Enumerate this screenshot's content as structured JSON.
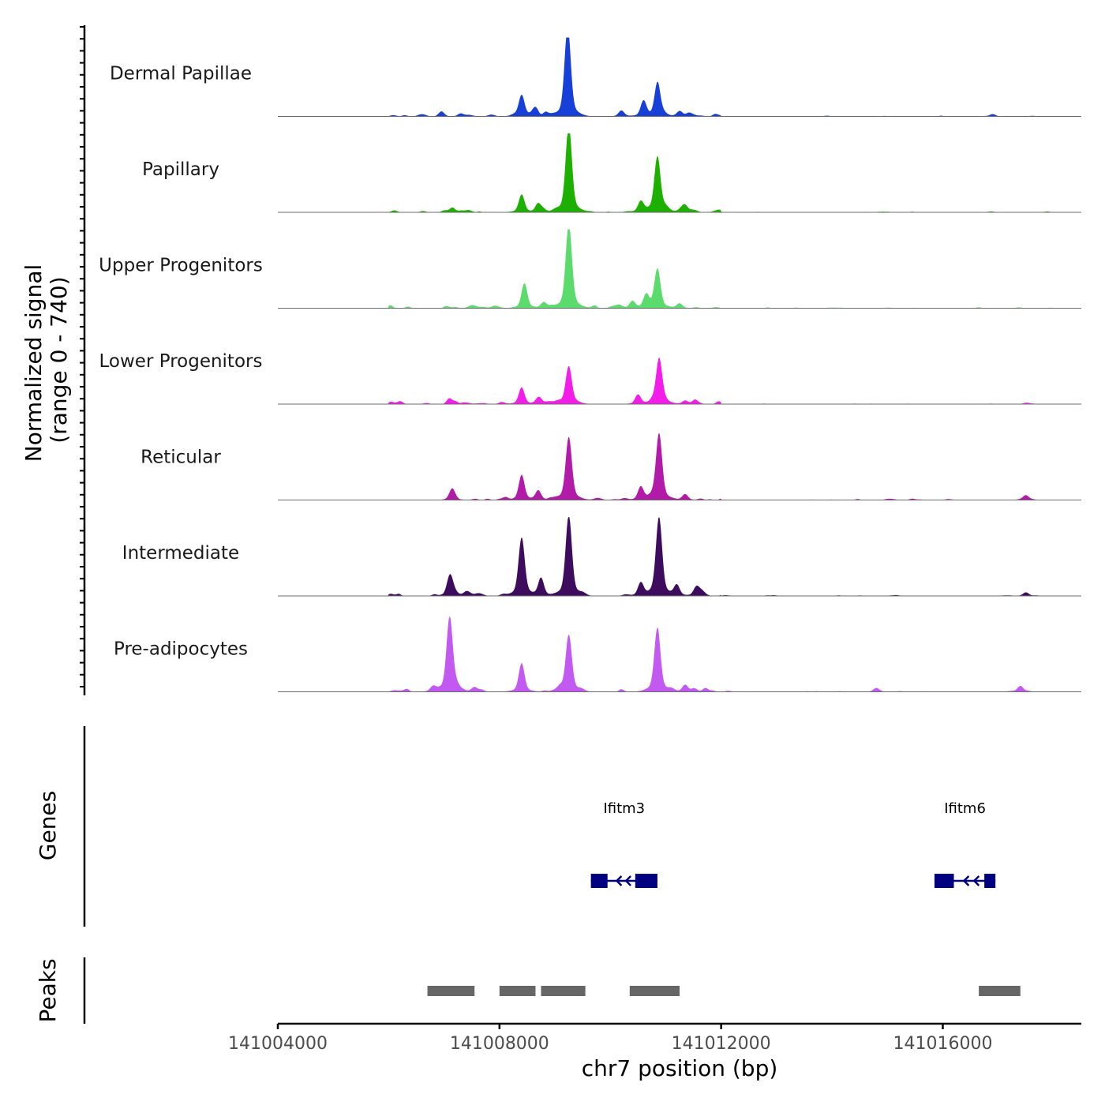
{
  "chart_data": {
    "type": "area",
    "title": "",
    "xlabel": "chr7 position (bp)",
    "ylabel_line1": "Normalized signal",
    "ylabel_line2": "(range 0 - 740)",
    "ylim": [
      0,
      740
    ],
    "x_range": [
      141004000,
      141018500
    ],
    "x_ticks": [
      141004000,
      141008000,
      141012000,
      141016000
    ],
    "x_tick_labels": [
      "141004000",
      "141008000",
      "141012000",
      "141016000"
    ],
    "series": [
      {
        "name": "Dermal Papillae",
        "color": "#1640D8",
        "peaks": [
          {
            "pos": 141007300,
            "height": 25
          },
          {
            "pos": 141008400,
            "height": 180
          },
          {
            "pos": 141008650,
            "height": 70
          },
          {
            "pos": 141009230,
            "height": 740
          },
          {
            "pos": 141010200,
            "height": 50
          },
          {
            "pos": 141010600,
            "height": 130
          },
          {
            "pos": 141010850,
            "height": 280
          },
          {
            "pos": 141011250,
            "height": 40
          },
          {
            "pos": 141016900,
            "height": 20
          }
        ]
      },
      {
        "name": "Papillary",
        "color": "#1DB000",
        "peaks": [
          {
            "pos": 141007150,
            "height": 40
          },
          {
            "pos": 141008400,
            "height": 150
          },
          {
            "pos": 141008700,
            "height": 60
          },
          {
            "pos": 141009250,
            "height": 740
          },
          {
            "pos": 141010550,
            "height": 90
          },
          {
            "pos": 141010850,
            "height": 470
          },
          {
            "pos": 141011350,
            "height": 40
          }
        ]
      },
      {
        "name": "Upper Progenitors",
        "color": "#5ADB6C",
        "peaks": [
          {
            "pos": 141007200,
            "height": 10
          },
          {
            "pos": 141008450,
            "height": 210
          },
          {
            "pos": 141008800,
            "height": 50
          },
          {
            "pos": 141009250,
            "height": 700
          },
          {
            "pos": 141010400,
            "height": 60
          },
          {
            "pos": 141010650,
            "height": 110
          },
          {
            "pos": 141010850,
            "height": 330
          },
          {
            "pos": 141011250,
            "height": 40
          }
        ]
      },
      {
        "name": "Lower Progenitors",
        "color": "#F21DE9",
        "peaks": [
          {
            "pos": 141007200,
            "height": 25
          },
          {
            "pos": 141008400,
            "height": 140
          },
          {
            "pos": 141008700,
            "height": 40
          },
          {
            "pos": 141009250,
            "height": 320
          },
          {
            "pos": 141010500,
            "height": 80
          },
          {
            "pos": 141010880,
            "height": 380
          },
          {
            "pos": 141011350,
            "height": 30
          },
          {
            "pos": 141017500,
            "height": 10
          }
        ]
      },
      {
        "name": "Reticular",
        "color": "#B21AA8",
        "peaks": [
          {
            "pos": 141007150,
            "height": 70
          },
          {
            "pos": 141008400,
            "height": 210
          },
          {
            "pos": 141008700,
            "height": 80
          },
          {
            "pos": 141009250,
            "height": 530
          },
          {
            "pos": 141010550,
            "height": 110
          },
          {
            "pos": 141010880,
            "height": 560
          },
          {
            "pos": 141011350,
            "height": 50
          },
          {
            "pos": 141017500,
            "height": 40
          }
        ]
      },
      {
        "name": "Intermediate",
        "color": "#3E0C5E",
        "peaks": [
          {
            "pos": 141007100,
            "height": 160
          },
          {
            "pos": 141007400,
            "height": 30
          },
          {
            "pos": 141008400,
            "height": 490
          },
          {
            "pos": 141008750,
            "height": 150
          },
          {
            "pos": 141009250,
            "height": 680
          },
          {
            "pos": 141010550,
            "height": 110
          },
          {
            "pos": 141010880,
            "height": 650
          },
          {
            "pos": 141011200,
            "height": 90
          },
          {
            "pos": 141011550,
            "height": 70
          },
          {
            "pos": 141017500,
            "height": 30
          }
        ]
      },
      {
        "name": "Pre-adipocytes",
        "color": "#C25AF2",
        "peaks": [
          {
            "pos": 141006800,
            "height": 40
          },
          {
            "pos": 141007100,
            "height": 630
          },
          {
            "pos": 141007550,
            "height": 40
          },
          {
            "pos": 141008400,
            "height": 240
          },
          {
            "pos": 141009250,
            "height": 480
          },
          {
            "pos": 141010850,
            "height": 540
          },
          {
            "pos": 141011350,
            "height": 60
          },
          {
            "pos": 141014800,
            "height": 30
          },
          {
            "pos": 141017400,
            "height": 50
          }
        ]
      }
    ],
    "genes": {
      "title": "Genes",
      "color": "#000080",
      "items": [
        {
          "name": "Ifitm3",
          "start": 141009650,
          "end": 141010850,
          "exons": [
            [
              141009650,
              141009950
            ],
            [
              141010450,
              141010850
            ]
          ],
          "strand": "-"
        },
        {
          "name": "Ifitm6",
          "start": 141015850,
          "end": 141016950,
          "exons": [
            [
              141015850,
              141016200
            ],
            [
              141016750,
              141016950
            ]
          ],
          "strand": "-"
        }
      ]
    },
    "peaks_track": {
      "title": "Peaks",
      "color": "#666666",
      "regions": [
        [
          141006700,
          141007550
        ],
        [
          141008000,
          141008650
        ],
        [
          141008750,
          141009550
        ],
        [
          141010350,
          141011250
        ],
        [
          141016650,
          141017400
        ]
      ]
    }
  }
}
